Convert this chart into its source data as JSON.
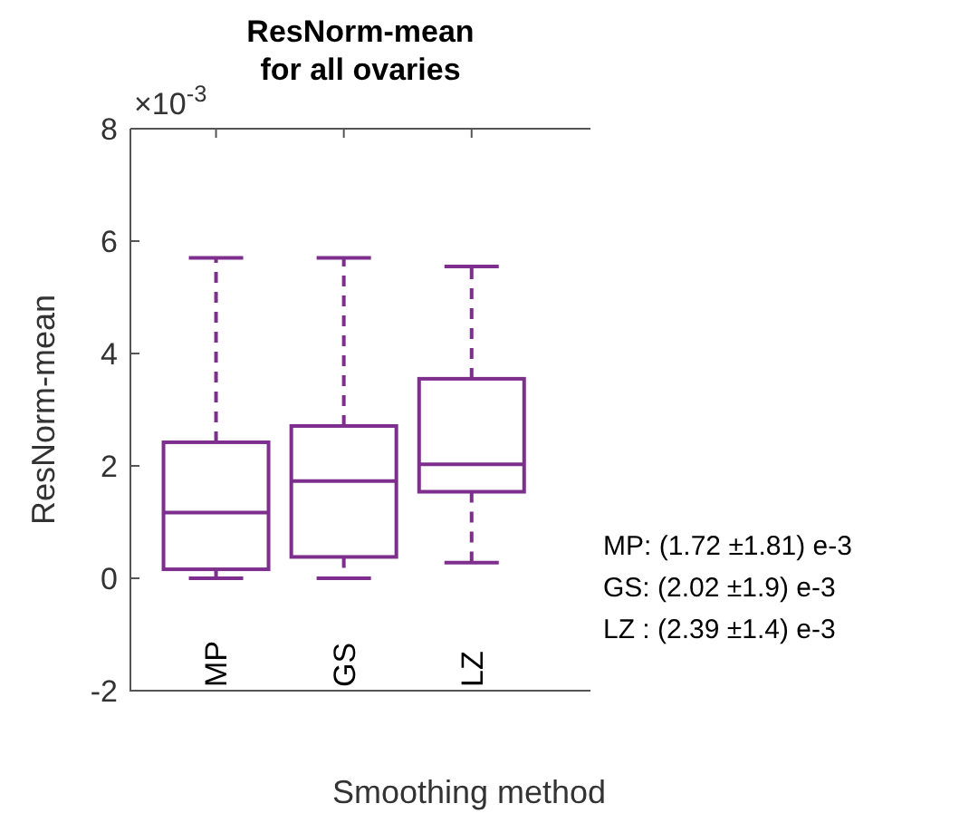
{
  "chart_data": {
    "type": "box",
    "title": "ResNorm-mean\nfor all ovaries",
    "xlabel": "Smoothing method",
    "ylabel": "ResNorm-mean",
    "categories": [
      "MP",
      "GS",
      "LZ"
    ],
    "color": "#7e2f8e",
    "boxes": [
      {
        "low": 0,
        "q1": 0.16,
        "median": 1.17,
        "q3": 2.42,
        "high": 5.7
      },
      {
        "low": 0,
        "q1": 0.38,
        "median": 1.73,
        "q3": 2.71,
        "high": 5.7
      },
      {
        "low": 0.28,
        "q1": 1.54,
        "median": 2.03,
        "q3": 3.55,
        "high": 5.55
      }
    ],
    "ylim": [
      -2,
      8
    ],
    "yticks": [
      -2,
      0,
      2,
      4,
      6,
      8
    ],
    "annotations": [
      "×10$^{-3}$",
      "MP: (1.72 ±1.81) e-3",
      "GS: (2.02 ±1.9) e-3",
      "LZ : (2.39 ±1.4) e-3"
    ]
  }
}
